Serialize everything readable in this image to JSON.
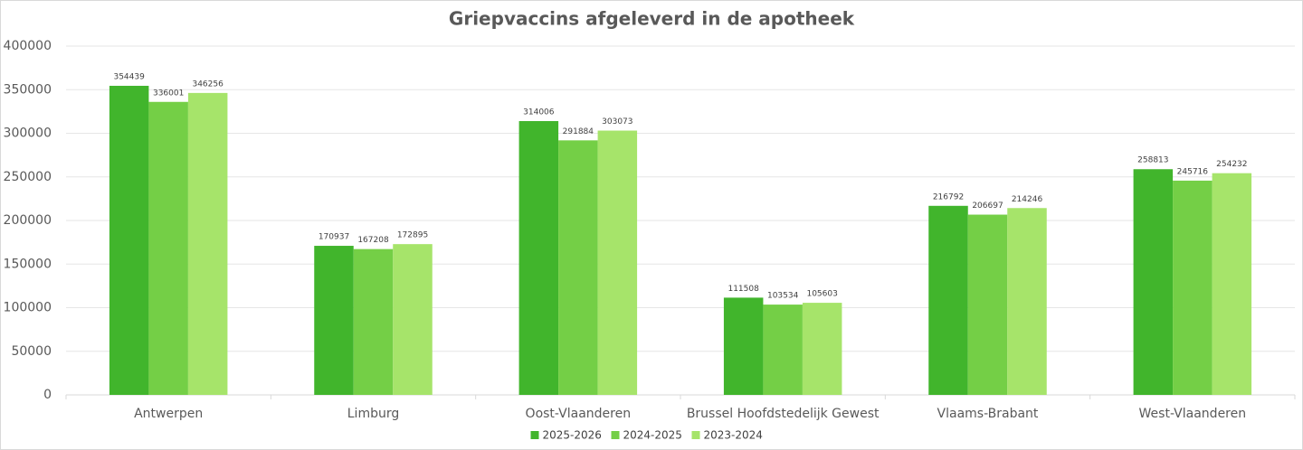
{
  "chart_data": {
    "type": "bar",
    "title": "Griepvaccins afgeleverd in de apotheek",
    "categories": [
      "Antwerpen",
      "Limburg",
      "Oost-Vlaanderen",
      "Brussel Hoofdstedelijk Gewest",
      "Vlaams-Brabant",
      "West-Vlaanderen"
    ],
    "series": [
      {
        "name": "2025-2026",
        "color": "#41b52c",
        "values": [
          354439,
          170937,
          314006,
          111508,
          216792,
          258813
        ]
      },
      {
        "name": "2024-2025",
        "color": "#74cf46",
        "values": [
          336001,
          167208,
          291884,
          103534,
          206697,
          245716
        ]
      },
      {
        "name": "2023-2024",
        "color": "#a6e46a",
        "values": [
          346256,
          172895,
          303073,
          105603,
          214246,
          254232
        ]
      }
    ],
    "ylim": [
      0,
      400000
    ],
    "yticks": [
      0,
      50000,
      100000,
      150000,
      200000,
      250000,
      300000,
      350000,
      400000
    ],
    "grid": true,
    "legend": "bottom"
  }
}
